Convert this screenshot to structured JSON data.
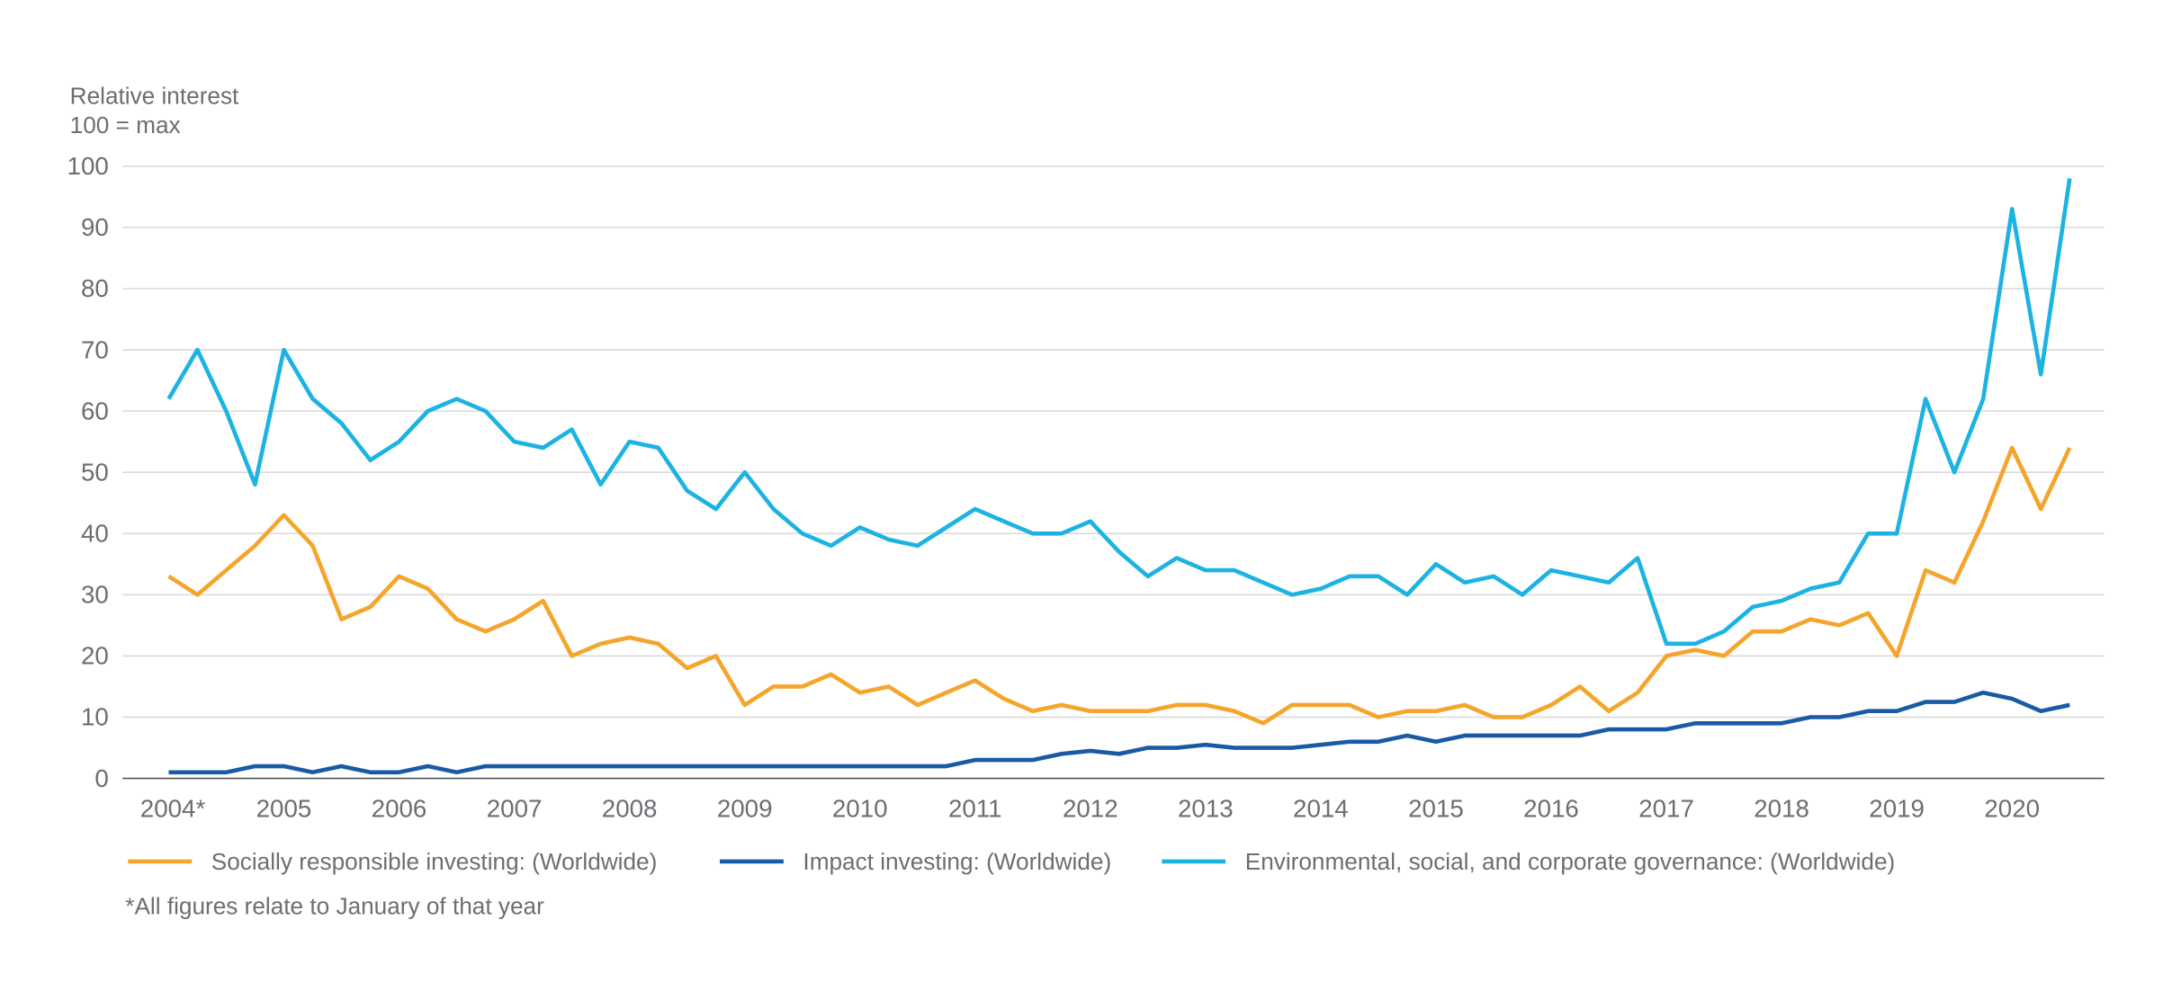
{
  "chart_data": {
    "type": "line",
    "y_label": [
      "Relative interest",
      "100 = max"
    ],
    "x": [
      2004,
      2004.25,
      2004.5,
      2004.75,
      2005,
      2005.25,
      2005.5,
      2005.75,
      2006,
      2006.25,
      2006.5,
      2006.75,
      2007,
      2007.25,
      2007.5,
      2007.75,
      2008,
      2008.25,
      2008.5,
      2008.75,
      2009,
      2009.25,
      2009.5,
      2009.75,
      2010,
      2010.25,
      2010.5,
      2010.75,
      2011,
      2011.25,
      2011.5,
      2011.75,
      2012,
      2012.25,
      2012.5,
      2012.75,
      2013,
      2013.25,
      2013.5,
      2013.75,
      2014,
      2014.25,
      2014.5,
      2014.75,
      2015,
      2015.25,
      2015.5,
      2015.75,
      2016,
      2016.25,
      2016.5,
      2016.75,
      2017,
      2017.25,
      2017.5,
      2017.75,
      2018,
      2018.25,
      2018.5,
      2018.75,
      2019,
      2019.25,
      2019.5,
      2019.75,
      2020,
      2020.25,
      2020.5
    ],
    "series": [
      {
        "name": "Socially responsible investing: (Worldwide)",
        "color": "#f5a52b",
        "values": [
          33,
          30,
          34,
          38,
          43,
          38,
          26,
          28,
          33,
          31,
          26,
          24,
          26,
          29,
          20,
          22,
          23,
          22,
          18,
          20,
          12,
          15,
          15,
          17,
          14,
          15,
          12,
          14,
          16,
          13,
          11,
          12,
          11,
          11,
          11,
          12,
          12,
          11,
          9,
          12,
          12,
          12,
          10,
          11,
          11,
          12,
          10,
          10,
          12,
          15,
          11,
          14,
          20,
          21,
          20,
          24,
          24,
          26,
          25,
          27,
          20,
          34,
          32,
          42,
          54,
          44,
          54
        ]
      },
      {
        "name": "Impact investing: (Worldwide)",
        "color": "#1a5aa5",
        "values": [
          1,
          1,
          1,
          2,
          2,
          1,
          2,
          1,
          1,
          2,
          1,
          2,
          2,
          2,
          2,
          2,
          2,
          2,
          2,
          2,
          2,
          2,
          2,
          2,
          2,
          2,
          2,
          2,
          3,
          3,
          3,
          4,
          4.5,
          4,
          5,
          5,
          5.5,
          5,
          5,
          5,
          5.5,
          6,
          6,
          7,
          6,
          7,
          7,
          7,
          7,
          7,
          8,
          8,
          8,
          9,
          9,
          9,
          9,
          10,
          10,
          11,
          11,
          12.5,
          12.5,
          14,
          13,
          11,
          12
        ]
      },
      {
        "name": "Environmental, social, and corporate governance: (Worldwide)",
        "color": "#1cb3e3",
        "values": [
          62,
          70,
          60,
          48,
          70,
          62,
          58,
          52,
          55,
          60,
          62,
          60,
          55,
          54,
          57,
          48,
          55,
          54,
          47,
          44,
          50,
          44,
          40,
          38,
          41,
          39,
          38,
          41,
          44,
          42,
          40,
          40,
          42,
          37,
          33,
          36,
          34,
          34,
          32,
          30,
          31,
          33,
          33,
          30,
          35,
          32,
          33,
          30,
          34,
          33,
          32,
          36,
          22,
          22,
          24,
          28,
          29,
          31,
          32,
          40,
          40,
          62,
          50,
          62,
          93,
          66,
          98
        ]
      }
    ],
    "xlim": [
      2003.6,
      2020.8
    ],
    "xticks": [
      {
        "value": 2004,
        "label": "2004*"
      },
      2005,
      2006,
      2007,
      2008,
      2009,
      2010,
      2011,
      2012,
      2013,
      2014,
      2015,
      2016,
      2017,
      2018,
      2019,
      2020
    ],
    "ylim": [
      0,
      100
    ],
    "yticks": [
      0,
      10,
      20,
      30,
      40,
      50,
      60,
      70,
      80,
      90,
      100
    ],
    "grid": true,
    "legend": "bottom",
    "footnote": "*All figures relate to January of that year"
  }
}
